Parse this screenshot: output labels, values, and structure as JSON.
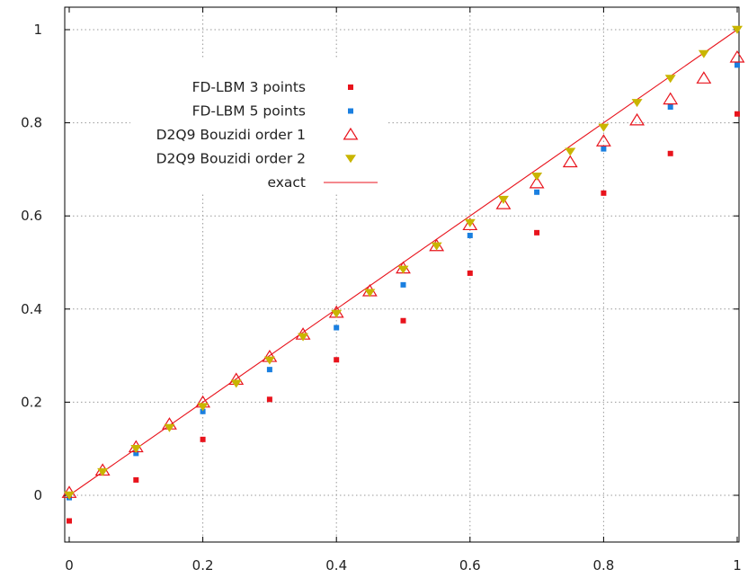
{
  "chart_data": {
    "type": "scatter",
    "title": "",
    "xlabel": "",
    "ylabel": "",
    "xlim": [
      0,
      1
    ],
    "ylim": [
      -0.1,
      1
    ],
    "grid": true,
    "legend_position": "top-left",
    "x_ticks": [
      "0",
      "0.2",
      "0.4",
      "0.6",
      "0.8",
      "1"
    ],
    "y_ticks": [
      "0",
      "0.2",
      "0.4",
      "0.6",
      "0.8",
      "1"
    ],
    "series": [
      {
        "name": "FD-LBM  3 points",
        "marker": "square",
        "color": "#e8131c",
        "x": [
          0,
          0.1,
          0.2,
          0.3,
          0.4,
          0.5,
          0.6,
          0.7,
          0.8,
          0.9,
          1.0
        ],
        "y": [
          -0.055,
          0.033,
          0.12,
          0.206,
          0.291,
          0.375,
          0.477,
          0.564,
          0.649,
          0.734,
          0.819
        ]
      },
      {
        "name": "FD-LBM  5 points",
        "marker": "square",
        "color": "#1a7fe0",
        "x": [
          0,
          0.1,
          0.2,
          0.3,
          0.4,
          0.5,
          0.6,
          0.7,
          0.8,
          0.9,
          1.0
        ],
        "y": [
          -0.005,
          0.09,
          0.18,
          0.27,
          0.36,
          0.452,
          0.558,
          0.651,
          0.744,
          0.834,
          0.924
        ]
      },
      {
        "name": "D2Q9 Bouzidi order 1",
        "marker": "triangle-up-open",
        "color": "#e8131c",
        "x": [
          0,
          0.05,
          0.1,
          0.15,
          0.2,
          0.25,
          0.3,
          0.35,
          0.4,
          0.45,
          0.5,
          0.55,
          0.6,
          0.65,
          0.7,
          0.75,
          0.8,
          0.85,
          0.9,
          0.95,
          1.0
        ],
        "y": [
          0.005,
          0.053,
          0.103,
          0.152,
          0.199,
          0.248,
          0.297,
          0.345,
          0.392,
          0.438,
          0.487,
          0.535,
          0.58,
          0.625,
          0.67,
          0.715,
          0.76,
          0.805,
          0.85,
          0.895,
          0.94
        ]
      },
      {
        "name": "D2Q9 Bouzidi order 2",
        "marker": "triangle-down-filled",
        "color": "#c9b500",
        "x": [
          0,
          0.05,
          0.1,
          0.15,
          0.2,
          0.25,
          0.3,
          0.35,
          0.4,
          0.45,
          0.5,
          0.55,
          0.6,
          0.65,
          0.7,
          0.75,
          0.8,
          0.85,
          0.9,
          0.95,
          1.0
        ],
        "y": [
          0.0,
          0.05,
          0.1,
          0.145,
          0.19,
          0.24,
          0.29,
          0.34,
          0.39,
          0.435,
          0.485,
          0.535,
          0.585,
          0.635,
          0.685,
          0.738,
          0.79,
          0.843,
          0.895,
          0.948,
          1.0
        ]
      },
      {
        "name": "exact",
        "marker": "line",
        "color": "#e8131c",
        "x": [
          0,
          1
        ],
        "y": [
          0,
          1
        ]
      }
    ]
  }
}
